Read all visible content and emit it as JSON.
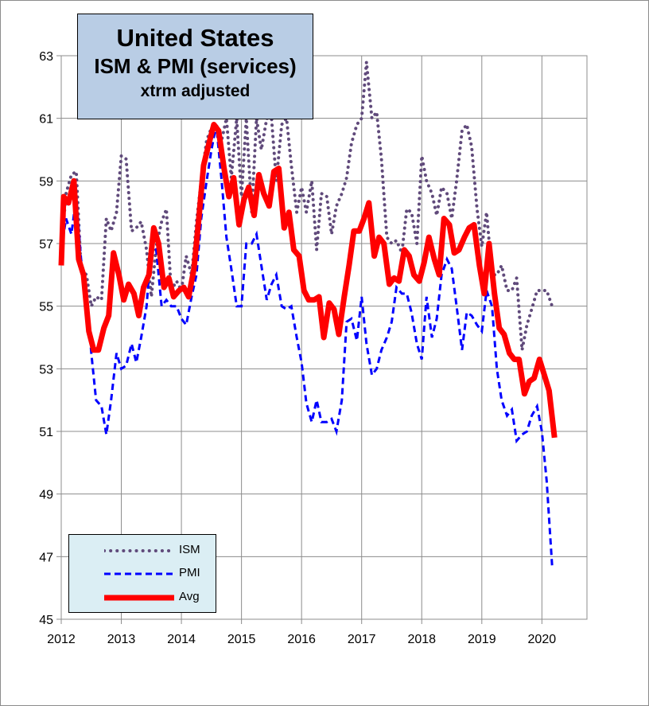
{
  "chart_data": {
    "type": "line",
    "title": "United States",
    "subtitle": "ISM & PMI (services)",
    "subtitle2": "xtrm adjusted",
    "xlabel": "",
    "ylabel": "",
    "xlim": [
      2012,
      2020.75
    ],
    "ylim": [
      45,
      63
    ],
    "x_ticks": [
      "2012",
      "2013",
      "2014",
      "2015",
      "2016",
      "2017",
      "2018",
      "2019",
      "2020"
    ],
    "y_ticks": [
      "45",
      "47",
      "49",
      "51",
      "53",
      "55",
      "57",
      "59",
      "61",
      "63"
    ],
    "grid": true,
    "legend": "bottom-left",
    "colors": {
      "ISM": "#604a7b",
      "PMI": "#0000ff",
      "Avg": "#ff0000",
      "title_bg": "#b9cde5",
      "legend_bg": "#dbeef4"
    },
    "series": [
      {
        "name": "ISM",
        "style": "dotted",
        "points": [
          [
            2012.0,
            56.8
          ],
          [
            2012.08,
            58.6
          ],
          [
            2012.17,
            59.2
          ],
          [
            2012.25,
            59.3
          ],
          [
            2012.33,
            56.2
          ],
          [
            2012.42,
            56.0
          ],
          [
            2012.5,
            55.0
          ],
          [
            2012.58,
            55.3
          ],
          [
            2012.67,
            55.2
          ],
          [
            2012.75,
            57.8
          ],
          [
            2012.83,
            57.4
          ],
          [
            2012.92,
            58.0
          ],
          [
            2013.0,
            59.8
          ],
          [
            2013.08,
            59.7
          ],
          [
            2013.17,
            57.4
          ],
          [
            2013.25,
            57.5
          ],
          [
            2013.33,
            57.7
          ],
          [
            2013.42,
            56.8
          ],
          [
            2013.5,
            55.3
          ],
          [
            2013.58,
            56.9
          ],
          [
            2013.67,
            57.7
          ],
          [
            2013.75,
            58.1
          ],
          [
            2013.83,
            55.5
          ],
          [
            2013.92,
            55.8
          ],
          [
            2014.0,
            55.5
          ],
          [
            2014.08,
            56.6
          ],
          [
            2014.17,
            56.0
          ],
          [
            2014.25,
            57.7
          ],
          [
            2014.33,
            59.0
          ],
          [
            2014.42,
            60.3
          ],
          [
            2014.5,
            60.7
          ],
          [
            2014.58,
            60.8
          ],
          [
            2014.67,
            60.3
          ],
          [
            2014.75,
            61.0
          ],
          [
            2014.83,
            59.1
          ],
          [
            2014.92,
            61.0
          ],
          [
            2015.0,
            58.5
          ],
          [
            2015.08,
            61.0
          ],
          [
            2015.17,
            58.0
          ],
          [
            2015.25,
            61.0
          ],
          [
            2015.33,
            60.0
          ],
          [
            2015.42,
            61.0
          ],
          [
            2015.5,
            61.0
          ],
          [
            2015.58,
            59.0
          ],
          [
            2015.67,
            60.8
          ],
          [
            2015.75,
            61.0
          ],
          [
            2015.83,
            59.5
          ],
          [
            2015.92,
            58.0
          ],
          [
            2016.0,
            58.8
          ],
          [
            2016.08,
            58.0
          ],
          [
            2016.17,
            59.0
          ],
          [
            2016.25,
            56.8
          ],
          [
            2016.33,
            58.6
          ],
          [
            2016.42,
            58.5
          ],
          [
            2016.5,
            57.3
          ],
          [
            2016.58,
            58.2
          ],
          [
            2016.67,
            58.6
          ],
          [
            2016.75,
            59.1
          ],
          [
            2016.83,
            60.2
          ],
          [
            2016.92,
            60.8
          ],
          [
            2017.0,
            61.0
          ],
          [
            2017.08,
            62.8
          ],
          [
            2017.17,
            61.0
          ],
          [
            2017.25,
            61.2
          ],
          [
            2017.33,
            59.7
          ],
          [
            2017.42,
            57.2
          ],
          [
            2017.5,
            57.0
          ],
          [
            2017.58,
            57.1
          ],
          [
            2017.67,
            56.7
          ],
          [
            2017.75,
            58.1
          ],
          [
            2017.83,
            58.0
          ],
          [
            2017.92,
            57.0
          ],
          [
            2018.0,
            59.8
          ],
          [
            2018.08,
            59.0
          ],
          [
            2018.17,
            58.6
          ],
          [
            2018.25,
            57.9
          ],
          [
            2018.33,
            58.8
          ],
          [
            2018.42,
            58.6
          ],
          [
            2018.5,
            57.8
          ],
          [
            2018.58,
            59.0
          ],
          [
            2018.67,
            60.6
          ],
          [
            2018.75,
            60.8
          ],
          [
            2018.83,
            60.1
          ],
          [
            2018.92,
            58.1
          ],
          [
            2019.0,
            56.9
          ],
          [
            2019.08,
            58.0
          ],
          [
            2019.17,
            56.0
          ],
          [
            2019.25,
            56.0
          ],
          [
            2019.33,
            56.3
          ],
          [
            2019.42,
            55.5
          ],
          [
            2019.5,
            55.5
          ],
          [
            2019.58,
            55.9
          ],
          [
            2019.67,
            53.6
          ],
          [
            2019.75,
            54.4
          ],
          [
            2019.83,
            54.9
          ],
          [
            2019.92,
            55.5
          ],
          [
            2020.0,
            55.5
          ],
          [
            2020.08,
            55.5
          ],
          [
            2020.17,
            55.0
          ]
        ]
      },
      {
        "name": "PMI",
        "style": "dashed",
        "points": [
          [
            2012.0,
            56.8
          ],
          [
            2012.08,
            57.8
          ],
          [
            2012.17,
            57.3
          ],
          [
            2012.25,
            58.5
          ],
          [
            2012.33,
            56.5
          ],
          [
            2012.42,
            55.5
          ],
          [
            2012.5,
            53.5
          ],
          [
            2012.58,
            52.0
          ],
          [
            2012.67,
            51.8
          ],
          [
            2012.75,
            50.9
          ],
          [
            2012.83,
            52.0
          ],
          [
            2012.92,
            53.5
          ],
          [
            2013.0,
            53.0
          ],
          [
            2013.08,
            53.1
          ],
          [
            2013.17,
            53.8
          ],
          [
            2013.25,
            53.2
          ],
          [
            2013.33,
            54.0
          ],
          [
            2013.42,
            55.0
          ],
          [
            2013.5,
            57.0
          ],
          [
            2013.58,
            56.8
          ],
          [
            2013.67,
            55.0
          ],
          [
            2013.75,
            55.2
          ],
          [
            2013.83,
            55.0
          ],
          [
            2013.92,
            55.0
          ],
          [
            2014.0,
            54.6
          ],
          [
            2014.08,
            54.4
          ],
          [
            2014.17,
            55.3
          ],
          [
            2014.25,
            56.0
          ],
          [
            2014.33,
            57.8
          ],
          [
            2014.42,
            59.0
          ],
          [
            2014.5,
            60.0
          ],
          [
            2014.58,
            60.8
          ],
          [
            2014.67,
            59.0
          ],
          [
            2014.75,
            57.2
          ],
          [
            2014.83,
            56.2
          ],
          [
            2014.92,
            55.0
          ],
          [
            2015.0,
            55.0
          ],
          [
            2015.08,
            57.0
          ],
          [
            2015.17,
            57.0
          ],
          [
            2015.25,
            57.3
          ],
          [
            2015.33,
            56.3
          ],
          [
            2015.42,
            55.2
          ],
          [
            2015.5,
            55.7
          ],
          [
            2015.58,
            56.0
          ],
          [
            2015.67,
            55.0
          ],
          [
            2015.75,
            54.9
          ],
          [
            2015.83,
            55.0
          ],
          [
            2015.92,
            54.0
          ],
          [
            2016.0,
            53.2
          ],
          [
            2016.08,
            51.9
          ],
          [
            2016.17,
            51.3
          ],
          [
            2016.25,
            52.0
          ],
          [
            2016.33,
            51.3
          ],
          [
            2016.42,
            51.3
          ],
          [
            2016.5,
            51.4
          ],
          [
            2016.58,
            51.0
          ],
          [
            2016.67,
            52.0
          ],
          [
            2016.75,
            54.5
          ],
          [
            2016.83,
            54.6
          ],
          [
            2016.92,
            53.9
          ],
          [
            2017.0,
            55.3
          ],
          [
            2017.08,
            53.8
          ],
          [
            2017.17,
            52.8
          ],
          [
            2017.25,
            53.0
          ],
          [
            2017.33,
            53.6
          ],
          [
            2017.42,
            54.0
          ],
          [
            2017.5,
            54.5
          ],
          [
            2017.58,
            55.6
          ],
          [
            2017.67,
            55.4
          ],
          [
            2017.75,
            55.4
          ],
          [
            2017.83,
            54.8
          ],
          [
            2017.92,
            53.8
          ],
          [
            2018.0,
            53.3
          ],
          [
            2018.08,
            55.3
          ],
          [
            2018.17,
            54.0
          ],
          [
            2018.25,
            54.6
          ],
          [
            2018.33,
            56.0
          ],
          [
            2018.42,
            56.5
          ],
          [
            2018.5,
            56.2
          ],
          [
            2018.58,
            55.0
          ],
          [
            2018.67,
            53.6
          ],
          [
            2018.75,
            54.8
          ],
          [
            2018.83,
            54.7
          ],
          [
            2018.92,
            54.4
          ],
          [
            2019.0,
            54.2
          ],
          [
            2019.08,
            55.5
          ],
          [
            2019.17,
            55.0
          ],
          [
            2019.25,
            53.0
          ],
          [
            2019.33,
            52.0
          ],
          [
            2019.42,
            51.5
          ],
          [
            2019.5,
            51.7
          ],
          [
            2019.58,
            50.7
          ],
          [
            2019.67,
            50.9
          ],
          [
            2019.75,
            51.0
          ],
          [
            2019.83,
            51.5
          ],
          [
            2019.92,
            51.8
          ],
          [
            2020.0,
            51.0
          ],
          [
            2020.08,
            49.4
          ],
          [
            2020.17,
            46.7
          ]
        ]
      },
      {
        "name": "Avg",
        "style": "solid",
        "points": [
          [
            2012.0,
            56.3
          ],
          [
            2012.04,
            58.5
          ],
          [
            2012.12,
            58.3
          ],
          [
            2012.21,
            59.0
          ],
          [
            2012.29,
            56.5
          ],
          [
            2012.37,
            56.0
          ],
          [
            2012.46,
            54.2
          ],
          [
            2012.54,
            53.6
          ],
          [
            2012.62,
            53.6
          ],
          [
            2012.71,
            54.3
          ],
          [
            2012.79,
            54.7
          ],
          [
            2012.87,
            56.7
          ],
          [
            2012.96,
            56.0
          ],
          [
            2013.04,
            55.2
          ],
          [
            2013.12,
            55.7
          ],
          [
            2013.21,
            55.4
          ],
          [
            2013.29,
            54.7
          ],
          [
            2013.37,
            55.6
          ],
          [
            2013.46,
            56.0
          ],
          [
            2013.54,
            57.5
          ],
          [
            2013.62,
            57.0
          ],
          [
            2013.71,
            55.6
          ],
          [
            2013.79,
            55.9
          ],
          [
            2013.87,
            55.3
          ],
          [
            2013.96,
            55.5
          ],
          [
            2014.04,
            55.6
          ],
          [
            2014.12,
            55.3
          ],
          [
            2014.21,
            56.2
          ],
          [
            2014.29,
            57.8
          ],
          [
            2014.37,
            59.5
          ],
          [
            2014.46,
            60.2
          ],
          [
            2014.54,
            60.8
          ],
          [
            2014.62,
            60.6
          ],
          [
            2014.71,
            59.4
          ],
          [
            2014.79,
            58.5
          ],
          [
            2014.87,
            59.1
          ],
          [
            2014.96,
            57.6
          ],
          [
            2015.04,
            58.4
          ],
          [
            2015.12,
            58.8
          ],
          [
            2015.21,
            57.9
          ],
          [
            2015.29,
            59.2
          ],
          [
            2015.37,
            58.6
          ],
          [
            2015.46,
            58.2
          ],
          [
            2015.54,
            59.3
          ],
          [
            2015.62,
            59.4
          ],
          [
            2015.71,
            57.5
          ],
          [
            2015.79,
            58.0
          ],
          [
            2015.87,
            56.8
          ],
          [
            2015.96,
            56.6
          ],
          [
            2016.04,
            55.5
          ],
          [
            2016.12,
            55.2
          ],
          [
            2016.21,
            55.2
          ],
          [
            2016.29,
            55.3
          ],
          [
            2016.37,
            54.0
          ],
          [
            2016.46,
            55.1
          ],
          [
            2016.54,
            54.9
          ],
          [
            2016.62,
            54.1
          ],
          [
            2016.71,
            55.3
          ],
          [
            2016.79,
            56.3
          ],
          [
            2016.87,
            57.4
          ],
          [
            2016.96,
            57.4
          ],
          [
            2017.04,
            57.8
          ],
          [
            2017.12,
            58.3
          ],
          [
            2017.21,
            56.6
          ],
          [
            2017.29,
            57.2
          ],
          [
            2017.37,
            57.0
          ],
          [
            2017.46,
            55.7
          ],
          [
            2017.54,
            55.9
          ],
          [
            2017.62,
            55.8
          ],
          [
            2017.71,
            56.8
          ],
          [
            2017.79,
            56.6
          ],
          [
            2017.87,
            56.0
          ],
          [
            2017.96,
            55.8
          ],
          [
            2018.04,
            56.4
          ],
          [
            2018.12,
            57.2
          ],
          [
            2018.21,
            56.5
          ],
          [
            2018.29,
            56.0
          ],
          [
            2018.37,
            57.8
          ],
          [
            2018.46,
            57.6
          ],
          [
            2018.54,
            56.7
          ],
          [
            2018.62,
            56.8
          ],
          [
            2018.71,
            57.2
          ],
          [
            2018.79,
            57.5
          ],
          [
            2018.87,
            57.6
          ],
          [
            2018.96,
            56.3
          ],
          [
            2019.04,
            55.4
          ],
          [
            2019.12,
            57.0
          ],
          [
            2019.21,
            55.4
          ],
          [
            2019.29,
            54.3
          ],
          [
            2019.37,
            54.1
          ],
          [
            2019.46,
            53.5
          ],
          [
            2019.54,
            53.3
          ],
          [
            2019.62,
            53.3
          ],
          [
            2019.71,
            52.2
          ],
          [
            2019.79,
            52.6
          ],
          [
            2019.87,
            52.7
          ],
          [
            2019.96,
            53.3
          ],
          [
            2020.04,
            52.8
          ],
          [
            2020.12,
            52.3
          ],
          [
            2020.21,
            50.8
          ]
        ]
      }
    ]
  },
  "legend": {
    "items": [
      "ISM",
      "PMI",
      "Avg"
    ]
  }
}
